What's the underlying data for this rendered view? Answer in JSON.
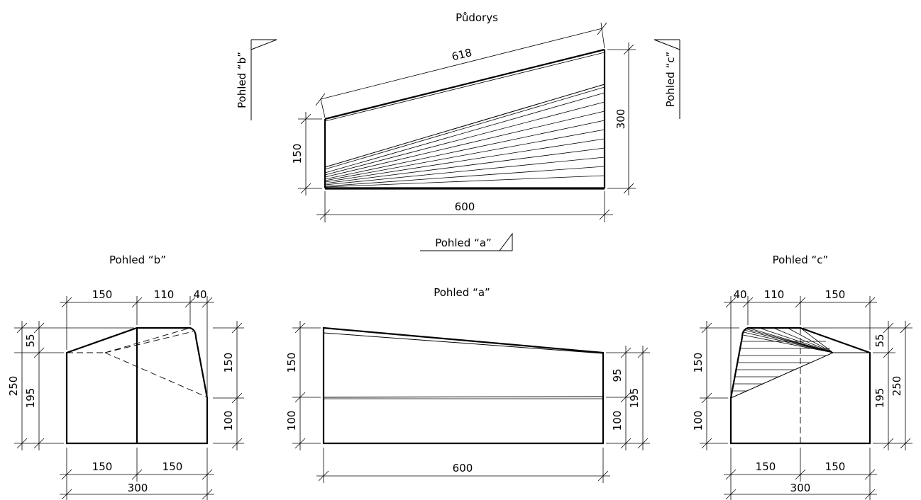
{
  "plan": {
    "title": "Půdorys",
    "dims": {
      "length_618": "618",
      "width_600": "600",
      "height_150": "150",
      "height_300": "300"
    },
    "markers": {
      "view_a": "Pohled “a”",
      "view_b": "Pohled “b”",
      "view_c": "Pohled “c”"
    }
  },
  "view_b": {
    "title": "Pohled “b”",
    "dims": {
      "top_150": "150",
      "top_110": "110",
      "top_40": "40",
      "left_55": "55",
      "left_195": "195",
      "left_250": "250",
      "right_150": "150",
      "right_100": "100",
      "bottom_150a": "150",
      "bottom_150b": "150",
      "bottom_300": "300"
    }
  },
  "view_a": {
    "title": "Pohled “a”",
    "dims": {
      "left_150": "150",
      "left_100": "100",
      "right_95": "95",
      "right_100": "100",
      "right_195": "195",
      "bottom_600": "600"
    }
  },
  "view_c": {
    "title": "Pohled “c”",
    "dims": {
      "top_40": "40",
      "top_110": "110",
      "top_150": "150",
      "left_150": "150",
      "left_100": "100",
      "right_55": "55",
      "right_195": "195",
      "right_250": "250",
      "bottom_150a": "150",
      "bottom_150b": "150",
      "bottom_300": "300"
    }
  }
}
